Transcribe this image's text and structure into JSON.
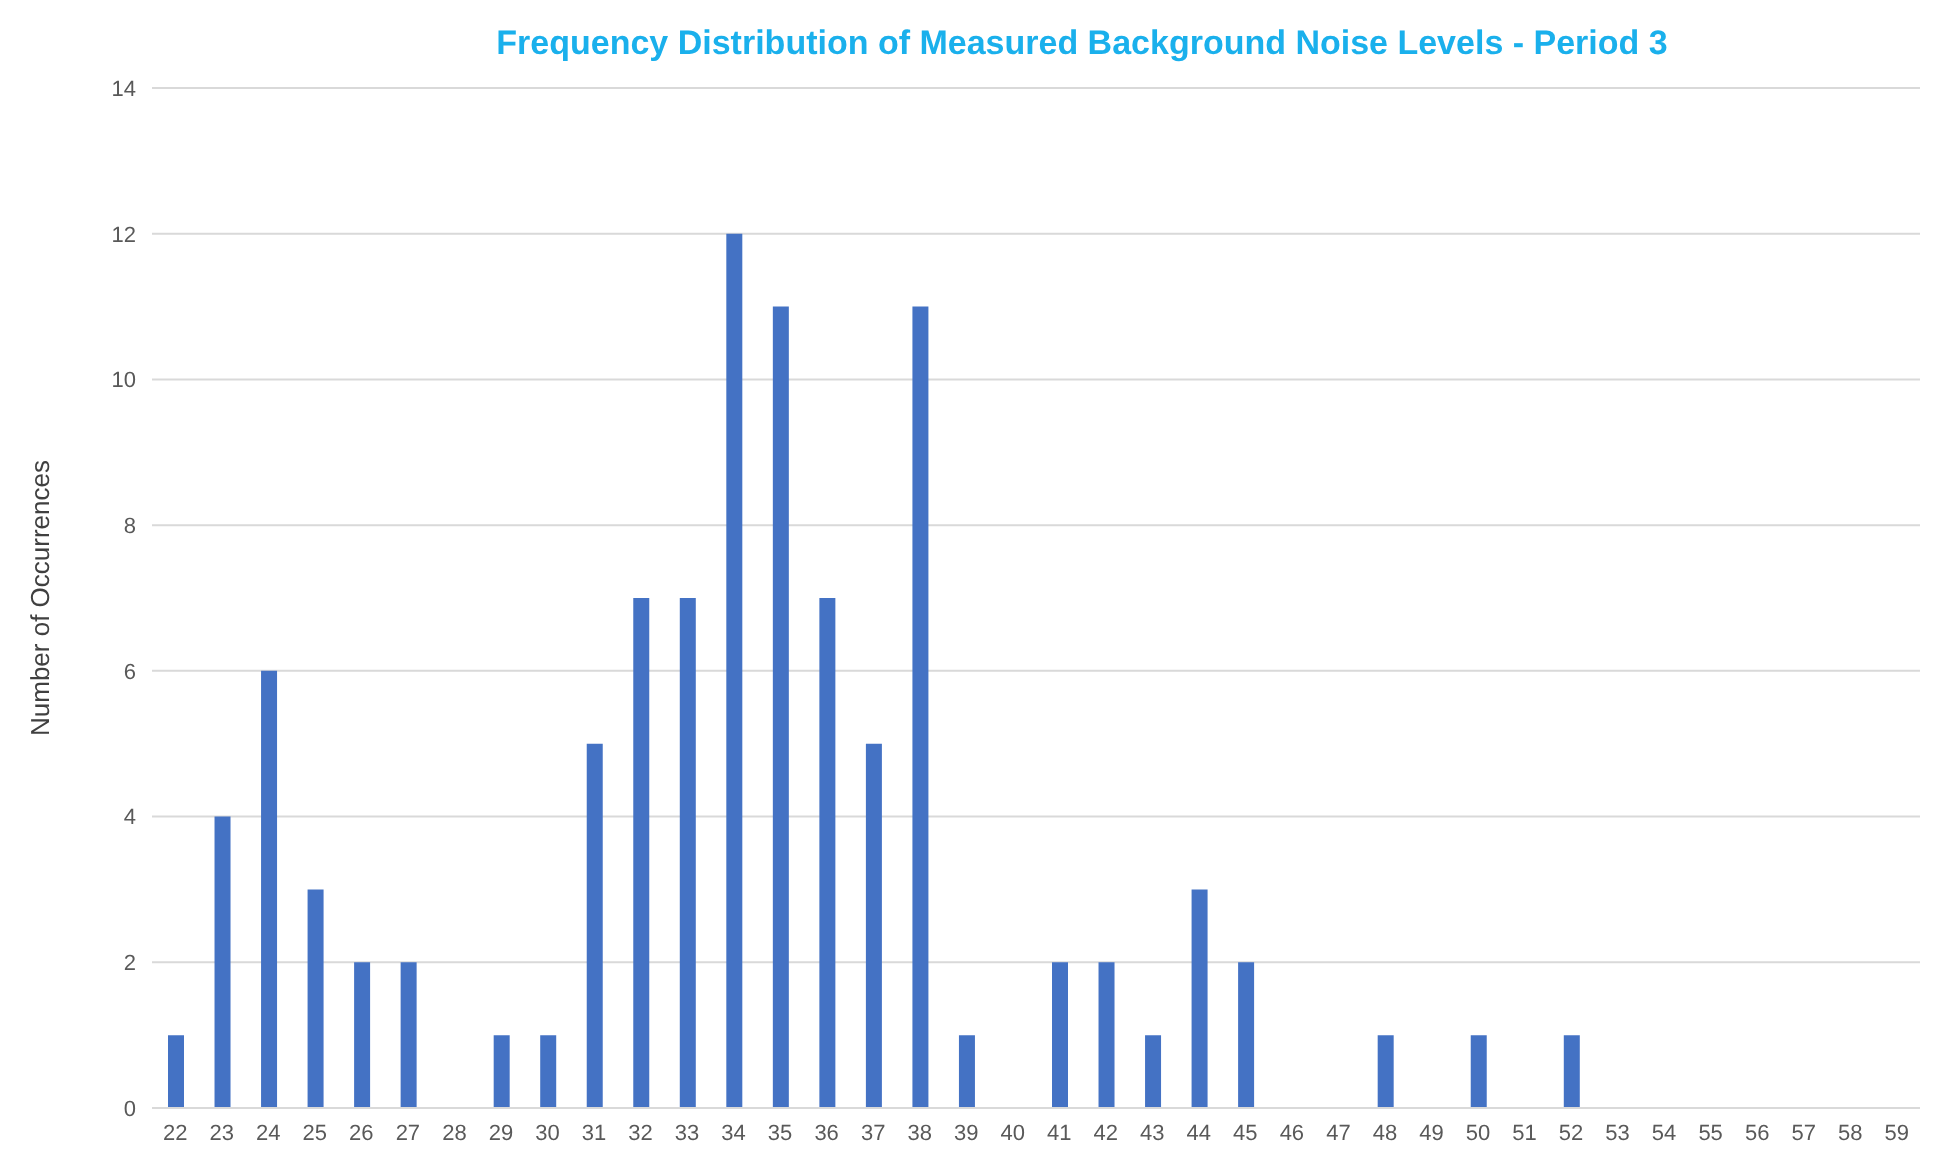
{
  "chart_data": {
    "type": "bar",
    "title": "Frequency Distribution of Measured Background Noise Levels - Period 3",
    "ylabel": "Number of Occurrences",
    "categories": [
      "22",
      "23",
      "24",
      "25",
      "26",
      "27",
      "28",
      "29",
      "30",
      "31",
      "32",
      "33",
      "34",
      "35",
      "36",
      "37",
      "38",
      "39",
      "40",
      "41",
      "42",
      "43",
      "44",
      "45",
      "46",
      "47",
      "48",
      "49",
      "50",
      "51",
      "52",
      "53",
      "54",
      "55",
      "56",
      "57",
      "58",
      "59"
    ],
    "values": [
      1,
      4,
      6,
      3,
      2,
      2,
      0,
      1,
      1,
      5,
      7,
      7,
      12,
      11,
      7,
      5,
      11,
      1,
      0,
      2,
      2,
      1,
      3,
      2,
      0,
      0,
      1,
      0,
      1,
      0,
      1,
      0,
      0,
      0,
      0,
      0,
      0,
      0
    ],
    "color": "#4472c4",
    "ylim": [
      0,
      14
    ],
    "yticks": [
      0,
      2,
      4,
      6,
      8,
      10,
      12,
      14
    ],
    "grid": "y"
  }
}
